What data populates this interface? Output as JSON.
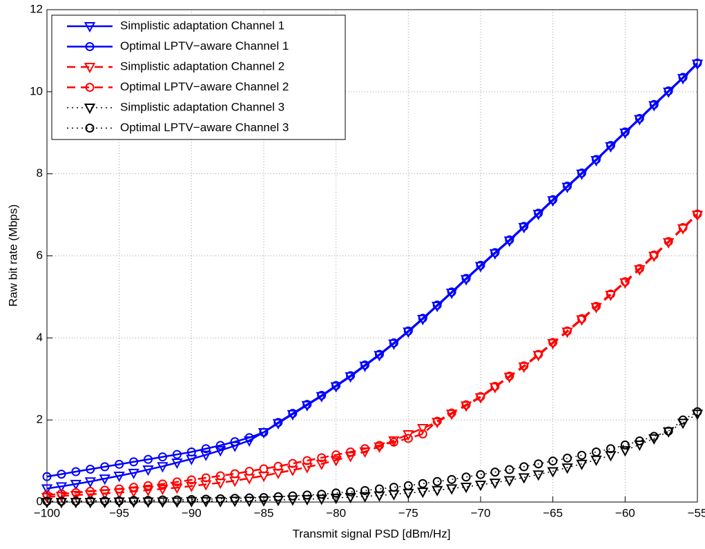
{
  "chart_data": {
    "type": "line",
    "xlabel": "Transmit signal PSD [dBm/Hz]",
    "ylabel": "Raw bit rate (Mbps)",
    "x": [
      -100,
      -99,
      -98,
      -97,
      -96,
      -95,
      -94,
      -93,
      -92,
      -91,
      -90,
      -89,
      -88,
      -87,
      -86,
      -85,
      -84,
      -83,
      -82,
      -81,
      -80,
      -79,
      -78,
      -77,
      -76,
      -75,
      -74,
      -73,
      -72,
      -71,
      -70,
      -69,
      -68,
      -67,
      -66,
      -65,
      -64,
      -63,
      -62,
      -61,
      -60,
      -59,
      -58,
      -57,
      -56,
      -55
    ],
    "xlim": [
      -100,
      -55
    ],
    "xticks": [
      {
        "value": -100,
        "label": "−100"
      },
      {
        "value": -95,
        "label": "−95"
      },
      {
        "value": -90,
        "label": "−90"
      },
      {
        "value": -85,
        "label": "−85"
      },
      {
        "value": -80,
        "label": "−80"
      },
      {
        "value": -75,
        "label": "−75"
      },
      {
        "value": -70,
        "label": "−70"
      },
      {
        "value": -65,
        "label": "−65"
      },
      {
        "value": -60,
        "label": "−60"
      },
      {
        "value": -55,
        "label": "−55"
      }
    ],
    "ylim": [
      0,
      12
    ],
    "yticks": [
      0,
      2,
      4,
      6,
      8,
      10,
      12
    ],
    "grid": true,
    "legend_position": "upper-left",
    "series": [
      {
        "name": "Simplistic adaptation Channel 1",
        "color": "#0000ff",
        "line_style": "solid",
        "marker": "triangle-down",
        "values": [
          0.33,
          0.38,
          0.44,
          0.5,
          0.57,
          0.64,
          0.71,
          0.79,
          0.87,
          0.96,
          1.05,
          1.15,
          1.26,
          1.37,
          1.5,
          1.7,
          1.92,
          2.14,
          2.36,
          2.58,
          2.82,
          3.06,
          3.32,
          3.58,
          3.86,
          4.15,
          4.46,
          4.78,
          5.1,
          5.43,
          5.75,
          6.06,
          6.37,
          6.7,
          7.02,
          7.35,
          7.68,
          8.0,
          8.33,
          8.67,
          9.0,
          9.33,
          9.67,
          10.0,
          10.33,
          10.68
        ]
      },
      {
        "name": "Optimal LPTV−aware Channel 1",
        "color": "#0000ff",
        "line_style": "solid",
        "marker": "circle",
        "values": [
          0.62,
          0.68,
          0.74,
          0.8,
          0.86,
          0.92,
          0.98,
          1.04,
          1.1,
          1.16,
          1.22,
          1.3,
          1.38,
          1.47,
          1.57,
          1.7,
          1.94,
          2.16,
          2.38,
          2.6,
          2.84,
          3.08,
          3.34,
          3.6,
          3.88,
          4.17,
          4.48,
          4.8,
          5.12,
          5.45,
          5.77,
          6.08,
          6.39,
          6.72,
          7.04,
          7.37,
          7.7,
          8.02,
          8.35,
          8.69,
          9.02,
          9.35,
          9.69,
          10.02,
          10.35,
          10.7
        ]
      },
      {
        "name": "Simplistic adaptation Channel 2",
        "color": "#ff0000",
        "line_style": "dashed",
        "marker": "triangle-down",
        "values": [
          0.12,
          0.15,
          0.17,
          0.19,
          0.21,
          0.23,
          0.26,
          0.29,
          0.32,
          0.35,
          0.39,
          0.43,
          0.47,
          0.52,
          0.58,
          0.64,
          0.71,
          0.78,
          0.85,
          0.93,
          1.02,
          1.12,
          1.23,
          1.35,
          1.5,
          1.65,
          1.8,
          1.95,
          2.15,
          2.35,
          2.55,
          2.8,
          3.05,
          3.3,
          3.58,
          3.87,
          4.15,
          4.45,
          4.75,
          5.05,
          5.35,
          5.67,
          6.0,
          6.33,
          6.67,
          7.0
        ]
      },
      {
        "name": "Optimal LPTV−aware Channel 2",
        "color": "#ff0000",
        "line_style": "dashed",
        "marker": "circle",
        "values": [
          0.17,
          0.2,
          0.23,
          0.26,
          0.29,
          0.32,
          0.36,
          0.4,
          0.44,
          0.49,
          0.54,
          0.59,
          0.64,
          0.69,
          0.75,
          0.81,
          0.87,
          0.94,
          1.01,
          1.08,
          1.15,
          1.22,
          1.3,
          1.38,
          1.46,
          1.55,
          1.66,
          1.97,
          2.17,
          2.37,
          2.57,
          2.82,
          3.07,
          3.32,
          3.6,
          3.89,
          4.17,
          4.47,
          4.77,
          5.07,
          5.37,
          5.69,
          6.02,
          6.35,
          6.69,
          7.02
        ]
      },
      {
        "name": "Simplistic adaptation Channel 3",
        "color": "#000000",
        "line_style": "dotted",
        "marker": "triangle-down",
        "values": [
          0.0,
          0.0,
          0.0,
          0.0,
          0.0,
          0.01,
          0.01,
          0.01,
          0.01,
          0.01,
          0.02,
          0.02,
          0.02,
          0.03,
          0.03,
          0.04,
          0.05,
          0.06,
          0.07,
          0.08,
          0.1,
          0.12,
          0.14,
          0.16,
          0.19,
          0.22,
          0.25,
          0.29,
          0.33,
          0.37,
          0.42,
          0.47,
          0.53,
          0.6,
          0.67,
          0.75,
          0.84,
          0.93,
          1.03,
          1.14,
          1.26,
          1.4,
          1.55,
          1.72,
          1.93,
          2.15
        ]
      },
      {
        "name": "Optimal LPTV−aware Channel 3",
        "color": "#000000",
        "line_style": "dotted",
        "marker": "circle",
        "values": [
          0.02,
          0.02,
          0.02,
          0.03,
          0.03,
          0.03,
          0.04,
          0.04,
          0.05,
          0.05,
          0.06,
          0.07,
          0.08,
          0.09,
          0.1,
          0.11,
          0.13,
          0.15,
          0.17,
          0.19,
          0.22,
          0.25,
          0.28,
          0.32,
          0.36,
          0.4,
          0.45,
          0.5,
          0.55,
          0.61,
          0.67,
          0.73,
          0.79,
          0.86,
          0.93,
          1.0,
          1.07,
          1.14,
          1.22,
          1.3,
          1.39,
          1.49,
          1.6,
          1.73,
          2.0,
          2.2
        ]
      }
    ]
  }
}
